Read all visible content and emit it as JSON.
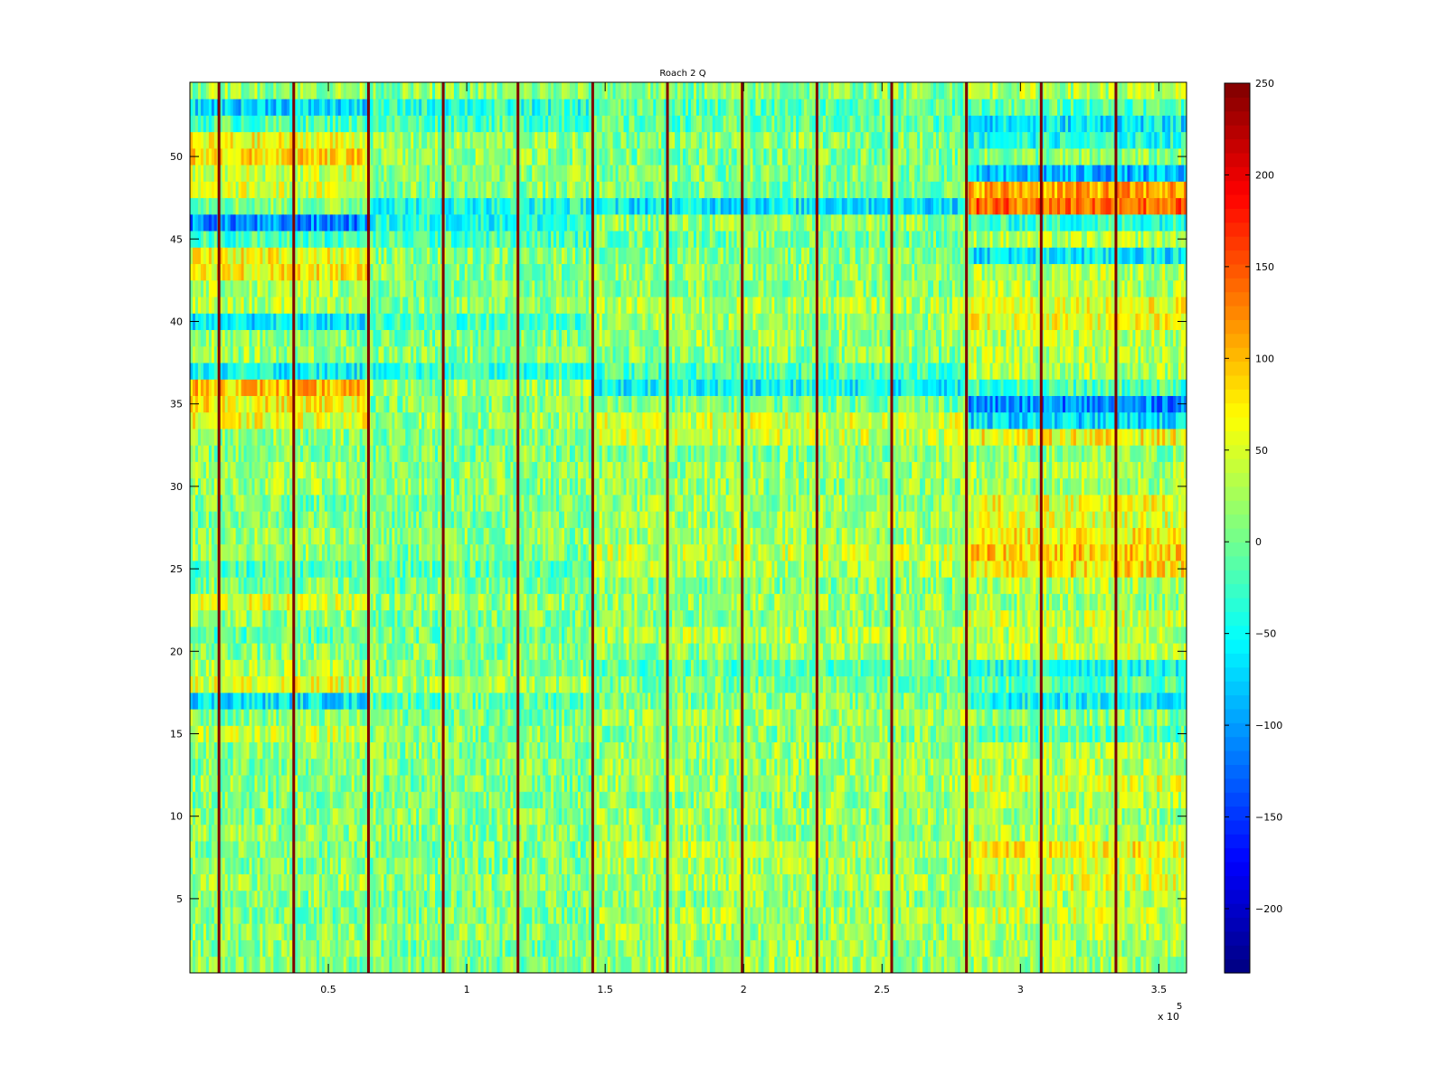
{
  "chart_data": {
    "type": "heatmap",
    "title": "Roach 2 Q",
    "xlabel": "",
    "ylabel": "",
    "x_exponent_label": "x 10",
    "x_exponent_power": "5",
    "xlim": [
      0,
      360000
    ],
    "ylim": [
      0.5,
      54.5
    ],
    "x_ticks": [
      {
        "value": 50000,
        "label": "0.5"
      },
      {
        "value": 100000,
        "label": "1"
      },
      {
        "value": 150000,
        "label": "1.5"
      },
      {
        "value": 200000,
        "label": "2"
      },
      {
        "value": 250000,
        "label": "2.5"
      },
      {
        "value": 300000,
        "label": "3"
      },
      {
        "value": 350000,
        "label": "3.5"
      }
    ],
    "y_ticks": [
      {
        "value": 5,
        "label": "5"
      },
      {
        "value": 10,
        "label": "10"
      },
      {
        "value": 15,
        "label": "15"
      },
      {
        "value": 20,
        "label": "20"
      },
      {
        "value": 25,
        "label": "25"
      },
      {
        "value": 30,
        "label": "30"
      },
      {
        "value": 35,
        "label": "35"
      },
      {
        "value": 40,
        "label": "40"
      },
      {
        "value": 45,
        "label": "45"
      },
      {
        "value": 50,
        "label": "50"
      }
    ],
    "rows": 54,
    "segment_boundaries": [
      10500,
      37500,
      64500,
      91500,
      118500,
      145500,
      172500,
      199500,
      226500,
      253500,
      280500,
      307500,
      334500
    ],
    "boundary_value": 250,
    "colormap": "jet",
    "colorbar": {
      "clim": [
        -235,
        250
      ],
      "ticks": [
        {
          "value": 250,
          "label": "250"
        },
        {
          "value": 200,
          "label": "200"
        },
        {
          "value": 150,
          "label": "150"
        },
        {
          "value": 100,
          "label": "100"
        },
        {
          "value": 50,
          "label": "50"
        },
        {
          "value": 0,
          "label": "0"
        },
        {
          "value": -50,
          "label": "−50"
        },
        {
          "value": -100,
          "label": "−100"
        },
        {
          "value": -150,
          "label": "−150"
        },
        {
          "value": -200,
          "label": "−200"
        }
      ]
    },
    "row_means_segment_1": {
      "note_values": [
        10,
        15,
        20,
        5,
        10,
        20,
        10,
        5,
        15,
        10,
        5,
        15,
        5,
        10,
        40,
        10,
        -60,
        55,
        30,
        10,
        -10,
        15,
        50,
        5,
        -20,
        15,
        20,
        10,
        5,
        20,
        25,
        10,
        15,
        55,
        70,
        95,
        -50,
        20,
        15,
        -60,
        30,
        25,
        70,
        65,
        -20,
        -110,
        10,
        45,
        40,
        80,
        60,
        -15,
        -70,
        20
      ]
    },
    "row_means_segment_2": [
      5,
      5,
      15,
      10,
      5,
      15,
      5,
      5,
      10,
      10,
      10,
      5,
      10,
      10,
      10,
      5,
      -10,
      25,
      10,
      10,
      0,
      5,
      15,
      0,
      -10,
      5,
      10,
      5,
      5,
      10,
      15,
      5,
      5,
      15,
      10,
      20,
      -30,
      10,
      5,
      -20,
      10,
      5,
      10,
      10,
      -20,
      -40,
      -40,
      10,
      10,
      15,
      15,
      -15,
      -35,
      10
    ],
    "row_means_segment_3": [
      20,
      15,
      20,
      25,
      15,
      25,
      20,
      35,
      15,
      20,
      15,
      25,
      20,
      20,
      10,
      20,
      10,
      5,
      -10,
      15,
      30,
      10,
      20,
      10,
      30,
      40,
      20,
      25,
      20,
      15,
      20,
      10,
      40,
      45,
      5,
      -50,
      -20,
      10,
      20,
      20,
      30,
      10,
      15,
      10,
      0,
      15,
      -60,
      5,
      5,
      5,
      10,
      -10,
      -10,
      10
    ],
    "row_means_segment_4": [
      20,
      25,
      30,
      40,
      30,
      50,
      40,
      70,
      30,
      20,
      30,
      50,
      30,
      30,
      -10,
      10,
      -50,
      -10,
      -40,
      40,
      30,
      40,
      20,
      30,
      80,
      90,
      70,
      50,
      60,
      20,
      30,
      10,
      70,
      -70,
      -110,
      -20,
      30,
      30,
      30,
      60,
      60,
      30,
      30,
      -60,
      30,
      -30,
      140,
      110,
      -90,
      10,
      -40,
      -60,
      -10,
      30
    ]
  }
}
